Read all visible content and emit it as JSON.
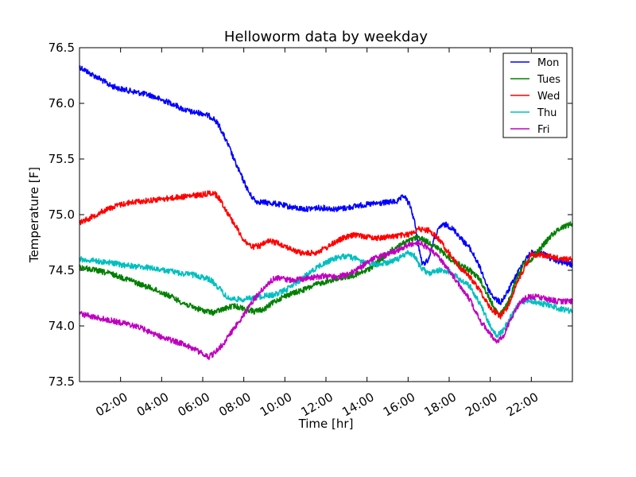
{
  "chart_data": {
    "type": "line",
    "title": "Helloworm data by weekday",
    "xlabel": "Time [hr]",
    "ylabel": "Temperature [F]",
    "xlim_hours": [
      0,
      24
    ],
    "ylim": [
      73.5,
      76.5
    ],
    "y_ticks": [
      "73.5",
      "74.0",
      "74.5",
      "75.0",
      "75.5",
      "76.0",
      "76.5"
    ],
    "x_ticks": [
      {
        "hour": 2,
        "label": "02:00"
      },
      {
        "hour": 4,
        "label": "04:00"
      },
      {
        "hour": 6,
        "label": "06:00"
      },
      {
        "hour": 8,
        "label": "08:00"
      },
      {
        "hour": 10,
        "label": "10:00"
      },
      {
        "hour": 12,
        "label": "12:00"
      },
      {
        "hour": 14,
        "label": "14:00"
      },
      {
        "hour": 16,
        "label": "16:00"
      },
      {
        "hour": 18,
        "label": "18:00"
      },
      {
        "hour": 20,
        "label": "20:00"
      },
      {
        "hour": 22,
        "label": "22:00"
      }
    ],
    "legend_position": "top-right",
    "grid": false,
    "series": [
      {
        "name": "Mon",
        "color": "#0000ff",
        "points": [
          [
            0,
            76.33
          ],
          [
            0.5,
            76.27
          ],
          [
            1,
            76.22
          ],
          [
            1.5,
            76.16
          ],
          [
            2,
            76.13
          ],
          [
            2.5,
            76.11
          ],
          [
            3,
            76.09
          ],
          [
            3.5,
            76.07
          ],
          [
            4,
            76.03
          ],
          [
            4.5,
            76.0
          ],
          [
            5,
            75.95
          ],
          [
            5.5,
            75.92
          ],
          [
            6,
            75.91
          ],
          [
            6.5,
            75.87
          ],
          [
            6.8,
            75.8
          ],
          [
            7,
            75.72
          ],
          [
            7.3,
            75.6
          ],
          [
            7.6,
            75.46
          ],
          [
            8,
            75.3
          ],
          [
            8.3,
            75.18
          ],
          [
            8.6,
            75.12
          ],
          [
            9,
            75.11
          ],
          [
            9.5,
            75.1
          ],
          [
            10,
            75.08
          ],
          [
            10.5,
            75.06
          ],
          [
            11,
            75.05
          ],
          [
            11.5,
            75.06
          ],
          [
            12,
            75.06
          ],
          [
            12.5,
            75.05
          ],
          [
            13,
            75.06
          ],
          [
            13.5,
            75.08
          ],
          [
            14,
            75.09
          ],
          [
            14.5,
            75.1
          ],
          [
            15,
            75.11
          ],
          [
            15.5,
            75.12
          ],
          [
            15.8,
            75.17
          ],
          [
            16.1,
            75.08
          ],
          [
            16.3,
            74.95
          ],
          [
            16.5,
            74.72
          ],
          [
            16.7,
            74.55
          ],
          [
            17,
            74.6
          ],
          [
            17.3,
            74.8
          ],
          [
            17.6,
            74.9
          ],
          [
            17.9,
            74.91
          ],
          [
            18.3,
            74.85
          ],
          [
            18.7,
            74.76
          ],
          [
            19,
            74.7
          ],
          [
            19.3,
            74.6
          ],
          [
            19.6,
            74.48
          ],
          [
            19.9,
            74.33
          ],
          [
            20.2,
            74.25
          ],
          [
            20.5,
            74.21
          ],
          [
            20.8,
            74.29
          ],
          [
            21.2,
            74.43
          ],
          [
            21.6,
            74.57
          ],
          [
            22,
            74.66
          ],
          [
            22.5,
            74.66
          ],
          [
            23,
            74.6
          ],
          [
            23.5,
            74.57
          ],
          [
            24,
            74.55
          ]
        ]
      },
      {
        "name": "Tues",
        "color": "#008000",
        "points": [
          [
            0,
            74.53
          ],
          [
            0.5,
            74.51
          ],
          [
            1,
            74.49
          ],
          [
            1.5,
            74.47
          ],
          [
            2,
            74.44
          ],
          [
            2.5,
            74.41
          ],
          [
            3,
            74.37
          ],
          [
            3.5,
            74.34
          ],
          [
            4,
            74.3
          ],
          [
            4.5,
            74.26
          ],
          [
            5,
            74.21
          ],
          [
            5.5,
            74.17
          ],
          [
            6,
            74.14
          ],
          [
            6.5,
            74.12
          ],
          [
            7,
            74.15
          ],
          [
            7.5,
            74.18
          ],
          [
            8,
            74.16
          ],
          [
            8.5,
            74.13
          ],
          [
            9,
            74.15
          ],
          [
            9.5,
            74.22
          ],
          [
            10,
            74.27
          ],
          [
            10.5,
            74.3
          ],
          [
            11,
            74.33
          ],
          [
            11.5,
            74.37
          ],
          [
            12,
            74.4
          ],
          [
            12.5,
            74.42
          ],
          [
            13,
            74.44
          ],
          [
            13.5,
            74.46
          ],
          [
            14,
            74.5
          ],
          [
            14.5,
            74.57
          ],
          [
            15,
            74.65
          ],
          [
            15.5,
            74.72
          ],
          [
            16,
            74.76
          ],
          [
            16.5,
            74.8
          ],
          [
            17,
            74.75
          ],
          [
            17.5,
            74.69
          ],
          [
            18,
            74.61
          ],
          [
            18.5,
            74.55
          ],
          [
            19,
            74.5
          ],
          [
            19.5,
            74.42
          ],
          [
            20,
            74.23
          ],
          [
            20.4,
            74.1
          ],
          [
            20.8,
            74.18
          ],
          [
            21.2,
            74.38
          ],
          [
            21.6,
            74.55
          ],
          [
            22,
            74.6
          ],
          [
            22.5,
            74.71
          ],
          [
            23,
            74.82
          ],
          [
            23.5,
            74.89
          ],
          [
            24,
            74.92
          ]
        ]
      },
      {
        "name": "Wed",
        "color": "#ff0000",
        "points": [
          [
            0,
            74.93
          ],
          [
            0.5,
            74.97
          ],
          [
            1,
            75.02
          ],
          [
            1.5,
            75.06
          ],
          [
            2,
            75.09
          ],
          [
            2.5,
            75.11
          ],
          [
            3,
            75.12
          ],
          [
            3.5,
            75.13
          ],
          [
            4,
            75.14
          ],
          [
            4.5,
            75.15
          ],
          [
            5,
            75.16
          ],
          [
            5.5,
            75.17
          ],
          [
            6,
            75.18
          ],
          [
            6.5,
            75.2
          ],
          [
            6.8,
            75.15
          ],
          [
            7.2,
            75.02
          ],
          [
            7.6,
            74.9
          ],
          [
            8,
            74.77
          ],
          [
            8.4,
            74.71
          ],
          [
            8.8,
            74.72
          ],
          [
            9.2,
            74.76
          ],
          [
            9.6,
            74.75
          ],
          [
            10,
            74.72
          ],
          [
            10.5,
            74.67
          ],
          [
            11,
            74.65
          ],
          [
            11.5,
            74.66
          ],
          [
            12,
            74.7
          ],
          [
            12.5,
            74.76
          ],
          [
            13,
            74.8
          ],
          [
            13.5,
            74.82
          ],
          [
            14,
            74.8
          ],
          [
            14.5,
            74.79
          ],
          [
            15,
            74.8
          ],
          [
            15.5,
            74.81
          ],
          [
            16,
            74.82
          ],
          [
            16.5,
            74.87
          ],
          [
            17,
            74.86
          ],
          [
            17.5,
            74.78
          ],
          [
            18,
            74.65
          ],
          [
            18.5,
            74.53
          ],
          [
            19,
            74.44
          ],
          [
            19.5,
            74.32
          ],
          [
            20,
            74.16
          ],
          [
            20.5,
            74.09
          ],
          [
            20.8,
            74.15
          ],
          [
            21.2,
            74.34
          ],
          [
            21.6,
            74.5
          ],
          [
            22,
            74.64
          ],
          [
            22.5,
            74.64
          ],
          [
            23,
            74.62
          ],
          [
            23.5,
            74.6
          ],
          [
            24,
            74.6
          ]
        ]
      },
      {
        "name": "Thu",
        "color": "#00bfbf",
        "points": [
          [
            0,
            74.6
          ],
          [
            0.5,
            74.59
          ],
          [
            1,
            74.58
          ],
          [
            1.5,
            74.57
          ],
          [
            2,
            74.55
          ],
          [
            2.5,
            74.54
          ],
          [
            3,
            74.53
          ],
          [
            3.5,
            74.52
          ],
          [
            4,
            74.5
          ],
          [
            4.5,
            74.49
          ],
          [
            5,
            74.47
          ],
          [
            5.5,
            74.46
          ],
          [
            6,
            74.44
          ],
          [
            6.4,
            74.41
          ],
          [
            6.8,
            74.34
          ],
          [
            7.2,
            74.25
          ],
          [
            7.6,
            74.24
          ],
          [
            8,
            74.24
          ],
          [
            8.5,
            74.25
          ],
          [
            9,
            74.27
          ],
          [
            9.5,
            74.28
          ],
          [
            10,
            74.32
          ],
          [
            10.5,
            74.38
          ],
          [
            11,
            74.45
          ],
          [
            11.5,
            74.52
          ],
          [
            12,
            74.57
          ],
          [
            12.5,
            74.61
          ],
          [
            13,
            74.63
          ],
          [
            13.5,
            74.6
          ],
          [
            14,
            74.56
          ],
          [
            14.5,
            74.55
          ],
          [
            15,
            74.57
          ],
          [
            15.5,
            74.6
          ],
          [
            16,
            74.66
          ],
          [
            16.3,
            74.63
          ],
          [
            16.6,
            74.53
          ],
          [
            17,
            74.47
          ],
          [
            17.5,
            74.5
          ],
          [
            18,
            74.49
          ],
          [
            18.5,
            74.42
          ],
          [
            19,
            74.36
          ],
          [
            19.5,
            74.2
          ],
          [
            20,
            74.0
          ],
          [
            20.3,
            73.91
          ],
          [
            20.6,
            73.95
          ],
          [
            21,
            74.08
          ],
          [
            21.4,
            74.2
          ],
          [
            21.8,
            74.23
          ],
          [
            22.3,
            74.21
          ],
          [
            22.8,
            74.19
          ],
          [
            23.3,
            74.16
          ],
          [
            24,
            74.13
          ]
        ]
      },
      {
        "name": "Fri",
        "color": "#bf00bf",
        "points": [
          [
            0,
            74.11
          ],
          [
            0.5,
            74.09
          ],
          [
            1,
            74.07
          ],
          [
            1.5,
            74.05
          ],
          [
            2,
            74.03
          ],
          [
            2.5,
            74.01
          ],
          [
            3,
            73.98
          ],
          [
            3.5,
            73.94
          ],
          [
            4,
            73.9
          ],
          [
            4.5,
            73.87
          ],
          [
            5,
            73.84
          ],
          [
            5.5,
            73.8
          ],
          [
            6,
            73.75
          ],
          [
            6.3,
            73.72
          ],
          [
            6.6,
            73.76
          ],
          [
            7,
            73.84
          ],
          [
            7.5,
            73.97
          ],
          [
            8,
            74.1
          ],
          [
            8.5,
            74.24
          ],
          [
            9,
            74.35
          ],
          [
            9.5,
            74.43
          ],
          [
            10,
            74.42
          ],
          [
            10.5,
            74.41
          ],
          [
            11,
            74.43
          ],
          [
            11.5,
            74.44
          ],
          [
            12,
            74.45
          ],
          [
            12.5,
            74.44
          ],
          [
            13,
            74.46
          ],
          [
            13.5,
            74.5
          ],
          [
            14,
            74.57
          ],
          [
            14.5,
            74.62
          ],
          [
            15,
            74.64
          ],
          [
            15.5,
            74.68
          ],
          [
            16,
            74.73
          ],
          [
            16.5,
            74.75
          ],
          [
            17,
            74.7
          ],
          [
            17.5,
            74.61
          ],
          [
            18,
            74.5
          ],
          [
            18.5,
            74.37
          ],
          [
            19,
            74.24
          ],
          [
            19.5,
            74.05
          ],
          [
            20,
            73.93
          ],
          [
            20.3,
            73.86
          ],
          [
            20.6,
            73.9
          ],
          [
            21,
            74.06
          ],
          [
            21.4,
            74.2
          ],
          [
            21.8,
            74.26
          ],
          [
            22.3,
            74.26
          ],
          [
            22.8,
            74.24
          ],
          [
            23.3,
            74.22
          ],
          [
            24,
            74.22
          ]
        ]
      }
    ]
  }
}
